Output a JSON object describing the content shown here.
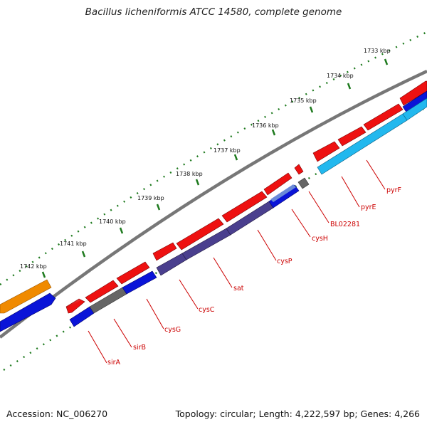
{
  "title": "Bacillus licheniformis ATCC 14580, complete genome",
  "footer": {
    "accession": "Accession: NC_006270",
    "summary": "Topology: circular; Length: 4,222,597 bp; Genes: 4,266"
  },
  "scale_labels": [
    "1733 kbp",
    "1734 kbp",
    "1735 kbp",
    "1736 kbp",
    "1737 kbp",
    "1738 kbp",
    "1739 kbp",
    "1740 kbp",
    "1741 kbp",
    "1742 kbp"
  ],
  "gene_labels": [
    "pyrF",
    "pyrE",
    "BL02281",
    "cysH",
    "cysP",
    "sat",
    "cysC",
    "cysG",
    "sirB",
    "sirA"
  ],
  "colors": {
    "forward_gene": "#ee1111",
    "reverse_gene_blue": "#0a14d8",
    "reverse_gene_purple": "#4a3f8e",
    "reverse_gene_cyan": "#22b8ee",
    "gray_gene": "#666666",
    "orange_feature": "#f08a00",
    "backbone": "#777777",
    "tick": "#1e7a1e",
    "label": "#cc0000"
  }
}
